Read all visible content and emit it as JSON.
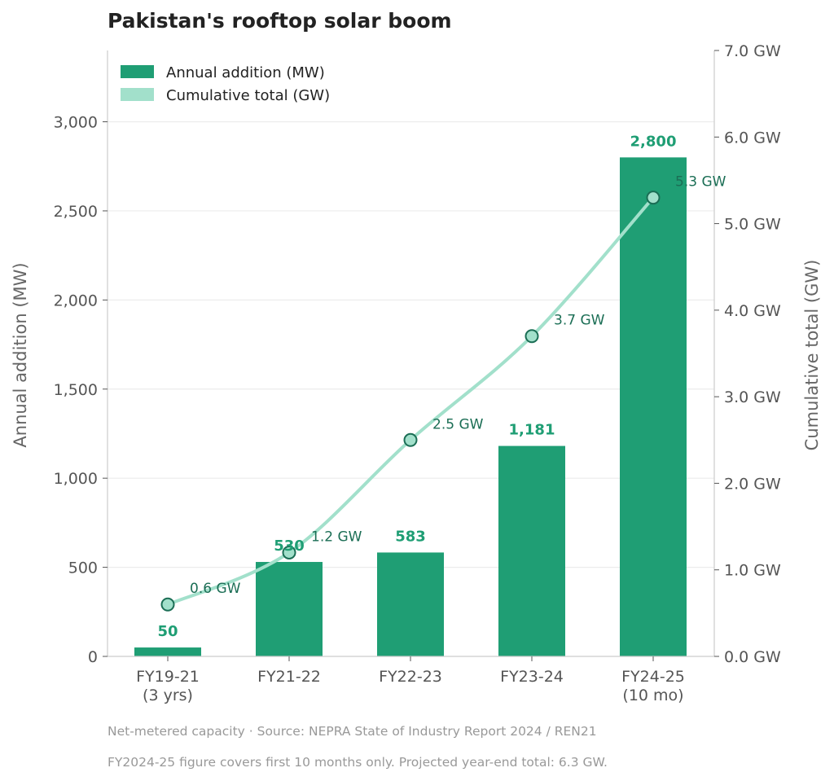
{
  "colors": {
    "bar": "#1f9e74",
    "line": "#a2e0cb",
    "marker_edge": "#1b6e55",
    "grid": "#ececec",
    "axis": "#cccccc"
  },
  "chart_data": {
    "type": "bar+line",
    "title": "Pakistan's rooftop solar boom",
    "categories": [
      {
        "line1": "FY19-21",
        "line2": "(3 yrs)"
      },
      {
        "line1": "FY21-22",
        "line2": ""
      },
      {
        "line1": "FY22-23",
        "line2": ""
      },
      {
        "line1": "FY23-24",
        "line2": ""
      },
      {
        "line1": "FY24-25",
        "line2": "(10 mo)"
      }
    ],
    "bars": {
      "name": "Annual addition (MW)",
      "values": [
        50,
        530,
        583,
        1181,
        2800
      ],
      "labels": [
        "50",
        "530",
        "583",
        "1,181",
        "2,800"
      ]
    },
    "line": {
      "name": "Cumulative total (GW)",
      "values": [
        0.6,
        1.2,
        2.5,
        3.7,
        5.3
      ],
      "labels": [
        "0.6 GW",
        "1.2 GW",
        "2.5 GW",
        "3.7 GW",
        "5.3 GW"
      ]
    },
    "y_left": {
      "label": "Annual addition (MW)",
      "min": 0,
      "max": 3400,
      "ticks": [
        0,
        500,
        1000,
        1500,
        2000,
        2500,
        3000
      ],
      "tick_labels": [
        "0",
        "500",
        "1,000",
        "1,500",
        "2,000",
        "2,500",
        "3,000"
      ]
    },
    "y_right": {
      "label": "Cumulative total (GW)",
      "min": 0,
      "max": 7,
      "ticks": [
        0,
        1,
        2,
        3,
        4,
        5,
        6,
        7
      ],
      "tick_labels": [
        "0.0 GW",
        "1.0 GW",
        "2.0 GW",
        "3.0 GW",
        "4.0 GW",
        "5.0 GW",
        "6.0 GW",
        "7.0 GW"
      ]
    },
    "grid": true,
    "legend_position": "top-left"
  },
  "notes": {
    "source": "Net-metered capacity · Source: NEPRA State of Industry Report 2024 / REN21",
    "footnote": "FY2024-25 figure covers first 10 months only. Projected year-end total: 6.3 GW."
  }
}
